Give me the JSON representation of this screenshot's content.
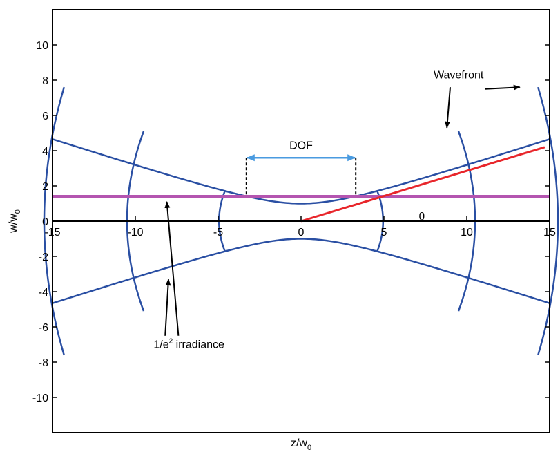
{
  "chart_data": {
    "type": "line",
    "xlabel": "z/w",
    "xlabel_sub": "0",
    "ylabel": "w/w",
    "ylabel_sub": "0",
    "xlim": [
      -15,
      15
    ],
    "ylim": [
      -12,
      12
    ],
    "xticks": [
      -15,
      -10,
      -5,
      0,
      5,
      10,
      15
    ],
    "yticks": [
      -10,
      -8,
      -6,
      -4,
      -2,
      0,
      2,
      4,
      6,
      8,
      10
    ],
    "grid": false,
    "legend": "none",
    "colors": {
      "beam": "#2a4fa3",
      "threshold": "#b455b0",
      "divergence": "#e8262b",
      "dof_arrow": "#4a9be0",
      "annotation": "#000000"
    },
    "series": [
      {
        "kind": "beam-envelope",
        "w0": 1,
        "zR": 3.3,
        "x_range": [
          -15,
          15
        ]
      },
      {
        "kind": "horizontal-line",
        "y": 1.414,
        "x_range": [
          -15,
          15
        ]
      },
      {
        "kind": "asymptote",
        "points": [
          [
            0,
            0
          ],
          [
            14.7,
            4.2
          ]
        ]
      }
    ],
    "wavefronts": [
      {
        "z": -14.3,
        "sag": 1.2,
        "half_height": 7.6
      },
      {
        "z": -9.5,
        "sag": 1.0,
        "half_height": 5.1
      },
      {
        "z": -4.6,
        "sag": 0.35,
        "half_height": 1.7
      },
      {
        "z": 4.6,
        "sag": 0.35,
        "half_height": 1.7
      },
      {
        "z": 9.5,
        "sag": 1.0,
        "half_height": 5.1
      },
      {
        "z": 14.3,
        "sag": 1.2,
        "half_height": 7.6
      }
    ],
    "dof": {
      "z_start": -3.3,
      "z_end": 3.3,
      "y_arrow": 3.6,
      "y_top": 3.6,
      "y_bottom": 1.414
    },
    "annotations": {
      "wavefront": "Wavefront",
      "dof": "DOF",
      "theta": "θ",
      "irradiance_prefix": "1/e",
      "irradiance_sup": "2",
      "irradiance_suffix": " irradiance"
    },
    "annotation_anchors": {
      "wavefront_text": [
        8.0,
        8.1
      ],
      "wavefront_arrow1": {
        "from": [
          9.0,
          7.6
        ],
        "to": [
          8.8,
          5.3
        ]
      },
      "wavefront_arrow2": {
        "from": [
          11.1,
          7.5
        ],
        "to": [
          13.2,
          7.6
        ]
      },
      "dof_text": [
        0,
        4.1
      ],
      "theta_text": [
        7.1,
        0.05
      ],
      "irradiance_text": [
        -8.9,
        -7.2
      ],
      "irradiance_arrow1": {
        "from": [
          -7.4,
          -6.5
        ],
        "to": [
          -8.1,
          1.1
        ]
      },
      "irradiance_arrow2": {
        "from": [
          -8.2,
          -6.5
        ],
        "to": [
          -8.0,
          -3.3
        ]
      }
    }
  }
}
